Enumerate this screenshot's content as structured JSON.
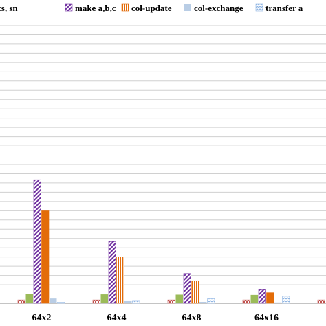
{
  "chart_data": {
    "type": "bar",
    "title": "",
    "xlabel": "",
    "ylabel": "",
    "categories": [
      "64x2",
      "64x4",
      "64x8",
      "64x16",
      ""
    ],
    "ylim": [
      0,
      100
    ],
    "grid": true,
    "legend_position": "top",
    "series": [
      {
        "name": "cs, sn",
        "color": "#c0504d",
        "pattern": "check",
        "values": [
          1.2,
          1.2,
          1.2,
          1.2,
          1.2
        ]
      },
      {
        "name": "",
        "color": "#9bbb59",
        "pattern": "solid",
        "values": [
          3.3,
          3.2,
          3.1,
          3.0,
          null
        ]
      },
      {
        "name": "make a,b,c",
        "color": "#7030a0",
        "pattern": "diag",
        "values": [
          44.5,
          22.2,
          10.7,
          5.1,
          null
        ]
      },
      {
        "name": "col-update",
        "color": "#e36c09",
        "pattern": "vert",
        "values": [
          33.3,
          16.7,
          8.1,
          3.8,
          null
        ]
      },
      {
        "name": "col-exchange",
        "color": "#b9cde5",
        "pattern": "solid",
        "values": [
          1.7,
          1.0,
          0.5,
          0.3,
          null
        ]
      },
      {
        "name": "transfer a",
        "color": "#8eb4e3",
        "pattern": "zigzag",
        "values": [
          0.4,
          1.0,
          1.6,
          2.5,
          null
        ]
      }
    ]
  }
}
